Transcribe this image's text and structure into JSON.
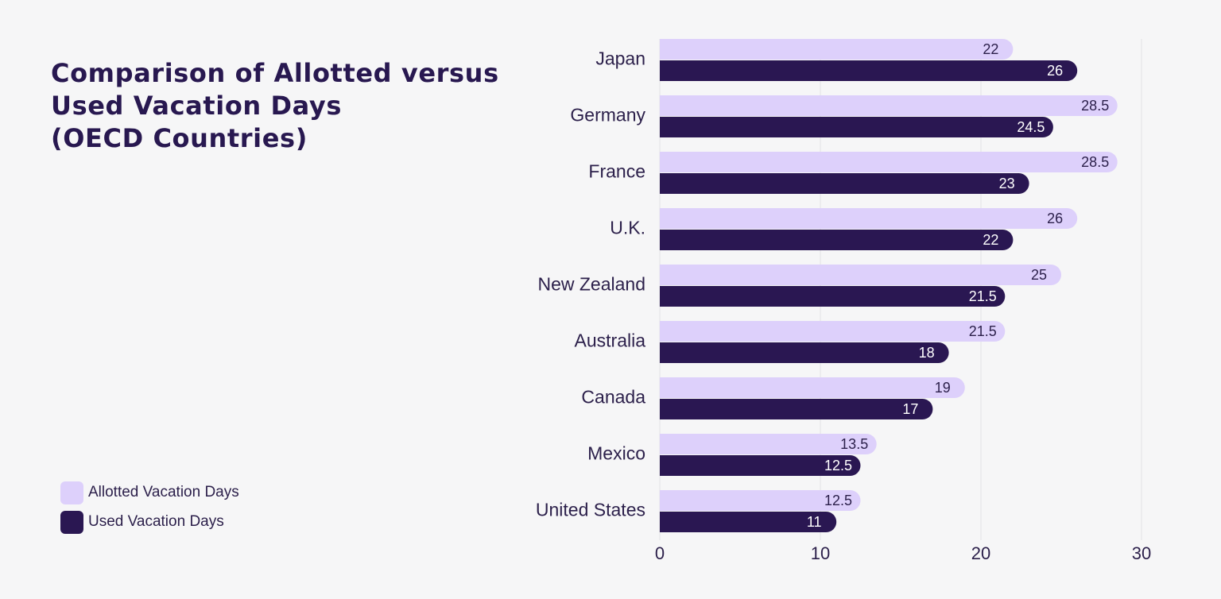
{
  "title_lines": [
    "Comparison of Allotted versus",
    "Used Vacation Days",
    "(OECD Countries)"
  ],
  "colors": {
    "background": "#f6f6f7",
    "allotted": "#ddd0fb",
    "used": "#2a1752",
    "text": "#2b1f4a",
    "grid": "#e2e2e6",
    "value_on_light": "#2b1f4a",
    "value_on_dark": "#ffffff"
  },
  "chart_data": {
    "type": "bar",
    "orientation": "horizontal",
    "title": "Comparison of Allotted versus Used Vacation Days (OECD Countries)",
    "categories": [
      "Japan",
      "Germany",
      "France",
      "U.K.",
      "New Zealand",
      "Australia",
      "Canada",
      "Mexico",
      "United States"
    ],
    "series": [
      {
        "name": "Allotted Vacation Days",
        "values": [
          22,
          28.5,
          28.5,
          26,
          25,
          21.5,
          19,
          13.5,
          12.5
        ]
      },
      {
        "name": "Used Vacation Days",
        "values": [
          26,
          24.5,
          23,
          22,
          21.5,
          18,
          17,
          12.5,
          11
        ]
      }
    ],
    "xlim": [
      0,
      30
    ],
    "xticks": [
      0,
      10,
      20,
      30
    ],
    "xlabel": "",
    "ylabel": "",
    "grid": "vertical",
    "legend": "bottom-left",
    "data_labels": true
  },
  "legend": {
    "items": [
      {
        "label": "Allotted Vacation Days",
        "color": "#ddd0fb"
      },
      {
        "label": "Used Vacation Days",
        "color": "#2a1752"
      }
    ]
  }
}
